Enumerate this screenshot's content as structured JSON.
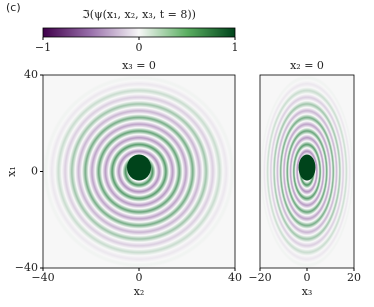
{
  "label": "(c)",
  "colorbar": {
    "label": "ℑ(ψ(x₁, x₂, x₃, t = 8))",
    "lim": [
      -1,
      1
    ],
    "ticks": [
      {
        "value": -1,
        "label": "−1"
      },
      0,
      1
    ],
    "colors": [
      "#40004b",
      "#9970ab",
      "#f7f7f7",
      "#5aae61",
      "#00441b"
    ]
  },
  "chart_data": [
    {
      "type": "heatmap",
      "title": "x₃ = 0",
      "xlabel": "x₂",
      "ylabel": "x₁",
      "xlim": [
        -40,
        40
      ],
      "ylim": [
        -40,
        40
      ],
      "xticks": [
        {
          "value": -40,
          "label": "−40"
        },
        0,
        40
      ],
      "yticks": [
        {
          "value": -40,
          "label": "−40"
        },
        0,
        40
      ]
    },
    {
      "type": "heatmap",
      "title": "x₂ = 0",
      "xlabel": "x₃",
      "xlim": [
        -20,
        20
      ],
      "ylim": [
        -40,
        40
      ],
      "xticks": [
        {
          "value": -20,
          "label": "−20"
        },
        0,
        20
      ]
    }
  ]
}
